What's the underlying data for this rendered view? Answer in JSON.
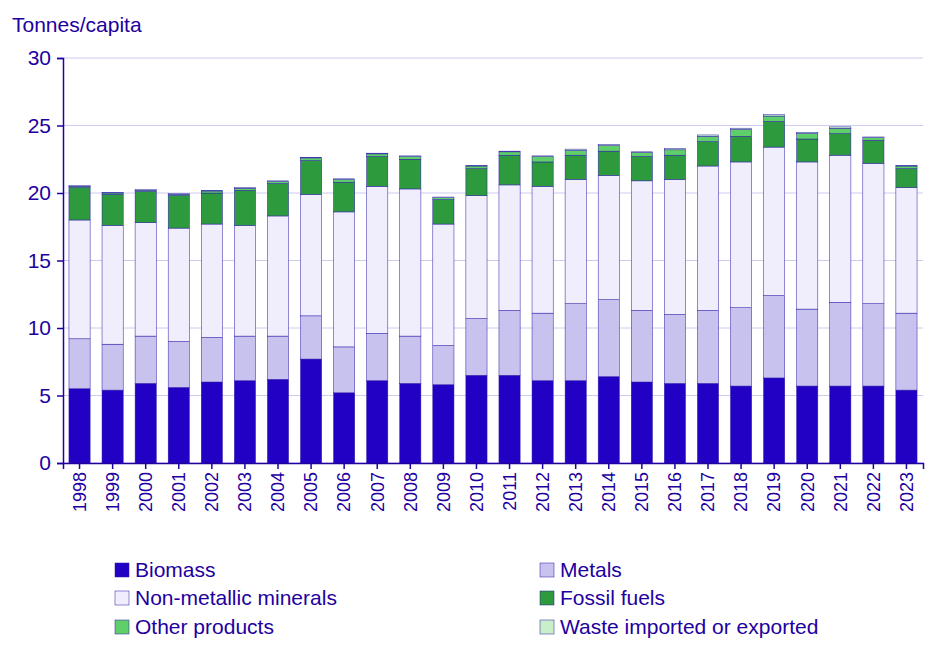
{
  "chart_data": {
    "type": "bar",
    "stacked": true,
    "grid": true,
    "legend": "bottom",
    "y_label": "Tonnes/capita",
    "ylim": [
      0,
      30
    ],
    "yticks": [
      0,
      5,
      10,
      15,
      20,
      25,
      30
    ],
    "categories": [
      "1998",
      "1999",
      "2000",
      "2001",
      "2002",
      "2003",
      "2004",
      "2005",
      "2006",
      "2007",
      "2008",
      "2009",
      "2010",
      "2011",
      "2012",
      "2013",
      "2014",
      "2015",
      "2016",
      "2017",
      "2018",
      "2019",
      "2020",
      "2021",
      "2022",
      "2023"
    ],
    "series": [
      {
        "name": "Biomass",
        "color": "#2200c4",
        "values": [
          5.5,
          5.4,
          5.9,
          5.6,
          6.0,
          6.1,
          6.2,
          7.7,
          5.2,
          6.1,
          5.9,
          5.8,
          6.5,
          6.5,
          6.1,
          6.1,
          6.4,
          6.0,
          5.9,
          5.9,
          5.7,
          6.3,
          5.7,
          5.7,
          5.7,
          5.4
        ]
      },
      {
        "name": "Metals",
        "color": "#c8c2ef",
        "values": [
          3.7,
          3.4,
          3.5,
          3.4,
          3.3,
          3.3,
          3.2,
          3.2,
          3.4,
          3.5,
          3.5,
          2.9,
          4.2,
          4.8,
          5.0,
          5.7,
          5.7,
          5.3,
          5.1,
          5.4,
          5.8,
          6.1,
          5.7,
          6.2,
          6.1,
          5.7
        ]
      },
      {
        "name": "Non-metallic minerals",
        "color": "#f0eefc",
        "values": [
          8.8,
          8.8,
          8.4,
          8.4,
          8.4,
          8.2,
          8.9,
          9.0,
          10.0,
          10.9,
          10.9,
          9.0,
          9.1,
          9.3,
          9.4,
          9.2,
          9.2,
          9.6,
          10.0,
          10.7,
          10.8,
          11.0,
          10.9,
          10.9,
          10.4,
          9.3
        ]
      },
      {
        "name": "Fossil fuels",
        "color": "#2e9a3e",
        "values": [
          2.4,
          2.3,
          2.3,
          2.4,
          2.3,
          2.6,
          2.4,
          2.5,
          2.2,
          2.2,
          2.2,
          1.8,
          2.0,
          2.2,
          1.8,
          1.8,
          1.8,
          1.8,
          1.8,
          1.8,
          1.9,
          1.9,
          1.7,
          1.6,
          1.7,
          1.4
        ]
      },
      {
        "name": "Other products",
        "color": "#5fcf6a",
        "values": [
          0.1,
          0.1,
          0.1,
          0.1,
          0.15,
          0.15,
          0.15,
          0.2,
          0.2,
          0.2,
          0.2,
          0.15,
          0.2,
          0.25,
          0.4,
          0.35,
          0.4,
          0.3,
          0.4,
          0.4,
          0.5,
          0.4,
          0.4,
          0.4,
          0.2,
          0.2
        ]
      },
      {
        "name": "Waste imported or exported",
        "color": "#c8efc8",
        "values": [
          0.05,
          0.05,
          0.05,
          0.05,
          0.05,
          0.05,
          0.05,
          0.05,
          0.05,
          0.05,
          0.05,
          0.05,
          0.05,
          0.05,
          0.05,
          0.1,
          0.1,
          0.05,
          0.1,
          0.1,
          0.1,
          0.1,
          0.1,
          0.1,
          0.05,
          0.05
        ]
      }
    ]
  }
}
